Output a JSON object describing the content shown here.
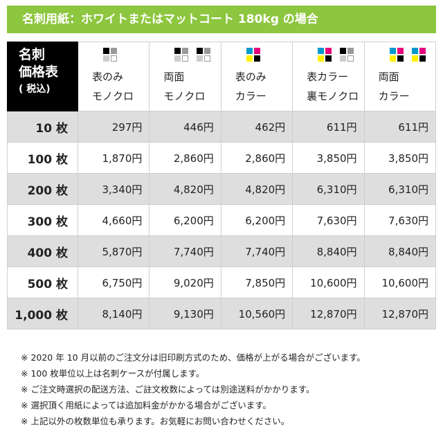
{
  "banner": "名刺用紙：ホワイトまたはマットコート 180kg の場合",
  "corner": {
    "line1": "名刺",
    "line2": "価格表",
    "line3": "( 税込)"
  },
  "columns": [
    {
      "line1": "表のみ",
      "line2": "モノクロ",
      "icons": [
        "mono"
      ]
    },
    {
      "line1": "両面",
      "line2": "モノクロ",
      "icons": [
        "mono",
        "mono"
      ]
    },
    {
      "line1": "表のみ",
      "line2": "カラー",
      "icons": [
        "color"
      ]
    },
    {
      "line1": "表カラー",
      "line2": "裏モノクロ",
      "icons": [
        "color",
        "mono"
      ]
    },
    {
      "line1": "両面",
      "line2": "カラー",
      "icons": [
        "color",
        "color"
      ]
    }
  ],
  "colors": {
    "banner": "#8dc63f",
    "mono": [
      "#000000",
      "#999999",
      "#cccccc",
      "#ffffff"
    ],
    "color": [
      "#0099cc",
      "#e6007e",
      "#fff100",
      "#000000"
    ]
  },
  "rows": [
    {
      "qty": "10 枚",
      "prices": [
        "297円",
        "446円",
        "462円",
        "611円",
        "611円"
      ]
    },
    {
      "qty": "100 枚",
      "prices": [
        "1,870円",
        "2,860円",
        "2,860円",
        "3,850円",
        "3,850円"
      ]
    },
    {
      "qty": "200 枚",
      "prices": [
        "3,340円",
        "4,820円",
        "4,820円",
        "6,310円",
        "6,310円"
      ]
    },
    {
      "qty": "300 枚",
      "prices": [
        "4,660円",
        "6,200円",
        "6,200円",
        "7,630円",
        "7,630円"
      ]
    },
    {
      "qty": "400 枚",
      "prices": [
        "5,870円",
        "7,740円",
        "7,740円",
        "8,840円",
        "8,840円"
      ]
    },
    {
      "qty": "500 枚",
      "prices": [
        "6,750円",
        "9,020円",
        "7,850円",
        "10,600円",
        "10,600円"
      ]
    },
    {
      "qty": "1,000 枚",
      "prices": [
        "8,140円",
        "9,130円",
        "10,560円",
        "12,870円",
        "12,870円"
      ]
    }
  ],
  "notes": [
    "※ 2020 年 10 月以前のご注文分は旧印刷方式のため、価格が上がる場合がございます。",
    "※ 100 枚単位以上は名刺ケースが付属します。",
    "※ ご注文時選択の配送方法、ご註文枚数によっては別途送料がかかります。",
    "※ 選択頂く用紙によっては追加料金がかかる場合がございます。",
    "※ 上記以外の枚数単位も承ります。お気軽にお問い合わせください。"
  ]
}
